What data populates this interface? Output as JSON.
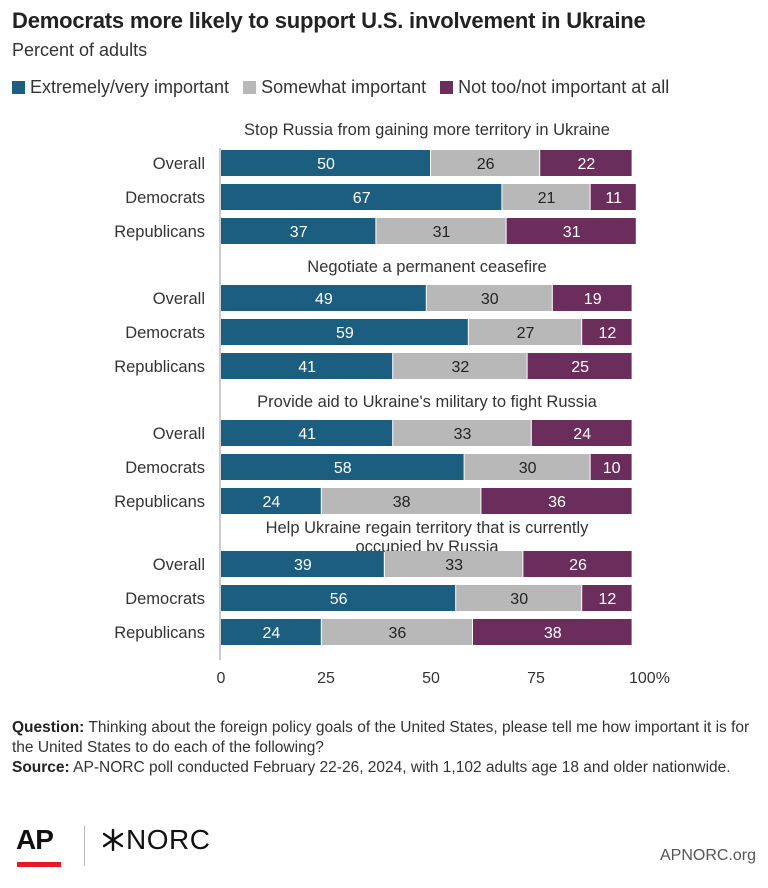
{
  "header": {
    "title": "Democrats more likely to support U.S. involvement in Ukraine",
    "subtitle": "Percent of adults"
  },
  "legend": [
    {
      "label": "Extremely/very important",
      "color": "#1b5e80"
    },
    {
      "label": "Somewhat important",
      "color": "#b8b8b8"
    },
    {
      "label": "Not too/not important at all",
      "color": "#6b2d5c"
    }
  ],
  "chart_data": {
    "type": "bar",
    "orientation": "horizontal",
    "stacked": true,
    "xlim": [
      0,
      100
    ],
    "x_ticks": [
      0,
      25,
      50,
      75,
      100
    ],
    "x_unit": "%",
    "categories": [
      "Overall",
      "Democrats",
      "Republicans"
    ],
    "series_names": [
      "Extremely/very important",
      "Somewhat important",
      "Not too/not important at all"
    ],
    "series_colors": [
      "#1b5e80",
      "#b8b8b8",
      "#6b2d5c"
    ],
    "panels": [
      {
        "title": "Stop Russia from gaining more territory in Ukraine",
        "rows": [
          {
            "label": "Overall",
            "values": [
              50,
              26,
              22
            ]
          },
          {
            "label": "Democrats",
            "values": [
              67,
              21,
              11
            ]
          },
          {
            "label": "Republicans",
            "values": [
              37,
              31,
              31
            ]
          }
        ]
      },
      {
        "title": "Negotiate a permanent ceasefire",
        "rows": [
          {
            "label": "Overall",
            "values": [
              49,
              30,
              19
            ]
          },
          {
            "label": "Democrats",
            "values": [
              59,
              27,
              12
            ]
          },
          {
            "label": "Republicans",
            "values": [
              41,
              32,
              25
            ]
          }
        ]
      },
      {
        "title": "Provide aid to Ukraine's military to fight Russia",
        "rows": [
          {
            "label": "Overall",
            "values": [
              41,
              33,
              24
            ]
          },
          {
            "label": "Democrats",
            "values": [
              58,
              30,
              10
            ]
          },
          {
            "label": "Republicans",
            "values": [
              24,
              38,
              36
            ]
          }
        ]
      },
      {
        "title": "Help Ukraine regain territory that is currently occupied by Russia",
        "title_lines": [
          "Help Ukraine regain territory that is currently",
          "occupied by Russia"
        ],
        "rows": [
          {
            "label": "Overall",
            "values": [
              39,
              33,
              26
            ]
          },
          {
            "label": "Democrats",
            "values": [
              56,
              30,
              12
            ]
          },
          {
            "label": "Republicans",
            "values": [
              24,
              36,
              38
            ]
          }
        ]
      }
    ]
  },
  "footer": {
    "question_label": "Question:",
    "question_text": "Thinking about the foreign policy goals of the United States, please tell me how important it is for the United States to do each of the following?",
    "source_label": "Source:",
    "source_text": "AP-NORC poll conducted February 22-26, 2024, with 1,102 adults age 18 and older nationwide."
  },
  "branding": {
    "ap_logo": "AP",
    "norc_logo": "NORC",
    "norc_mark_icon": "asterisk-star-icon",
    "site": "APNORC.org"
  }
}
